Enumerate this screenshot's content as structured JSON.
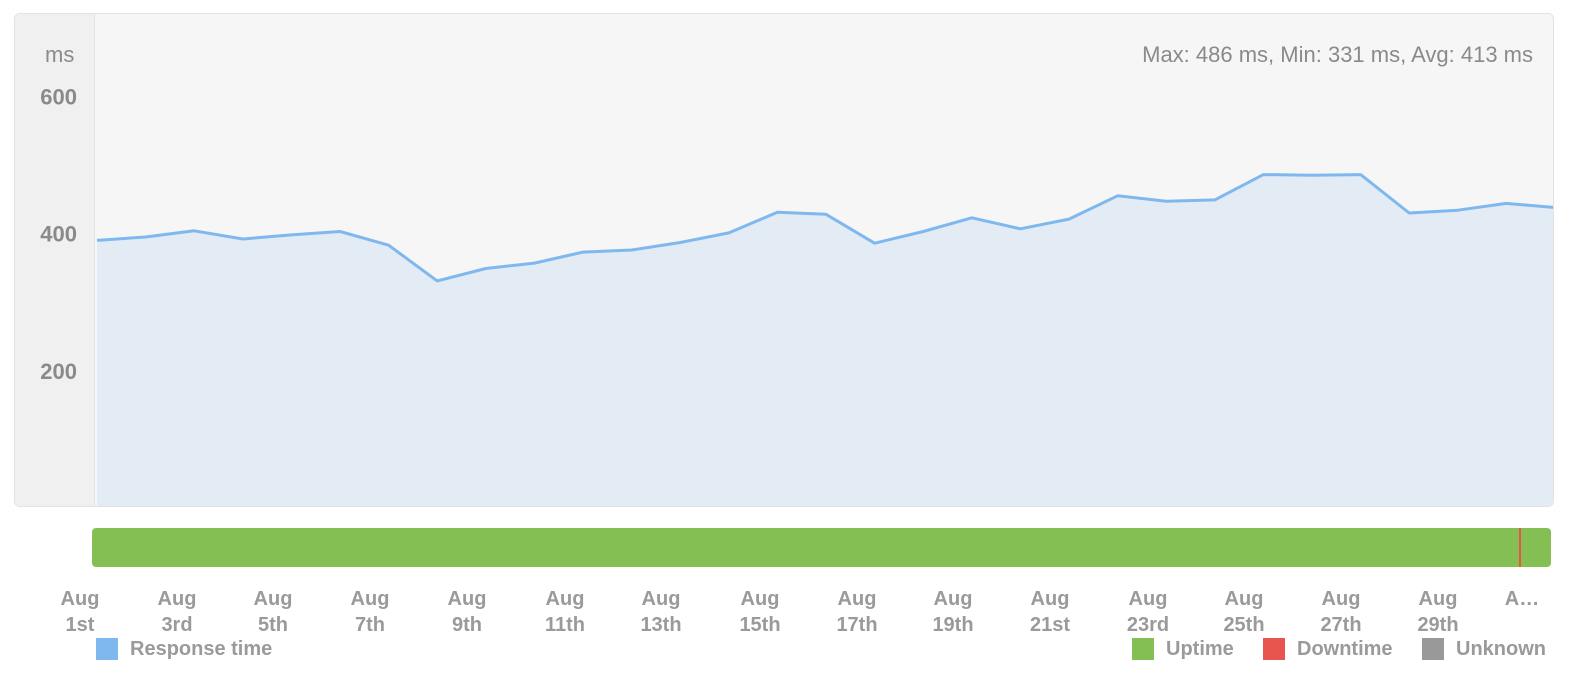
{
  "chart_data": {
    "type": "area",
    "ylabel": "ms",
    "stats_text": "Max: 486 ms, Min: 331 ms, Avg: 413 ms",
    "ylim": [
      0,
      720
    ],
    "y_ticks": [
      200,
      400,
      600
    ],
    "x": [
      "Aug 1",
      "Aug 2",
      "Aug 3",
      "Aug 4",
      "Aug 5",
      "Aug 6",
      "Aug 7",
      "Aug 8",
      "Aug 9",
      "Aug 10",
      "Aug 11",
      "Aug 12",
      "Aug 13",
      "Aug 14",
      "Aug 15",
      "Aug 16",
      "Aug 17",
      "Aug 18",
      "Aug 19",
      "Aug 20",
      "Aug 21",
      "Aug 22",
      "Aug 23",
      "Aug 24",
      "Aug 25",
      "Aug 26",
      "Aug 27",
      "Aug 28",
      "Aug 29",
      "Aug 30",
      "Aug 31"
    ],
    "series": [
      {
        "name": "Response time",
        "color": "#7fb8ef",
        "fill": "#e3ecf5",
        "values": [
          390,
          395,
          404,
          392,
          398,
          403,
          383,
          331,
          349,
          357,
          373,
          376,
          387,
          401,
          431,
          428,
          386,
          403,
          423,
          407,
          421,
          455,
          447,
          449,
          486,
          485,
          486,
          430,
          434,
          444,
          438
        ]
      }
    ],
    "x_tick_labels": [
      [
        "Aug",
        "1st"
      ],
      [
        "Aug",
        "3rd"
      ],
      [
        "Aug",
        "5th"
      ],
      [
        "Aug",
        "7th"
      ],
      [
        "Aug",
        "9th"
      ],
      [
        "Aug",
        "11th"
      ],
      [
        "Aug",
        "13th"
      ],
      [
        "Aug",
        "15th"
      ],
      [
        "Aug",
        "17th"
      ],
      [
        "Aug",
        "19th"
      ],
      [
        "Aug",
        "21st"
      ],
      [
        "Aug",
        "23rd"
      ],
      [
        "Aug",
        "25th"
      ],
      [
        "Aug",
        "27th"
      ],
      [
        "Aug",
        "29th"
      ],
      [
        "A…",
        ""
      ]
    ],
    "status_bar": {
      "uptime_color": "#84bf53",
      "downtime_color": "#e8554e",
      "downtime_events": [
        "Aug 31"
      ]
    },
    "legend": {
      "response_time": {
        "label": "Response time",
        "color": "#7fb8ef"
      },
      "uptime": {
        "label": "Uptime",
        "color": "#84bf53"
      },
      "downtime": {
        "label": "Downtime",
        "color": "#e8554e"
      },
      "unknown": {
        "label": "Unknown",
        "color": "#999999"
      }
    }
  }
}
